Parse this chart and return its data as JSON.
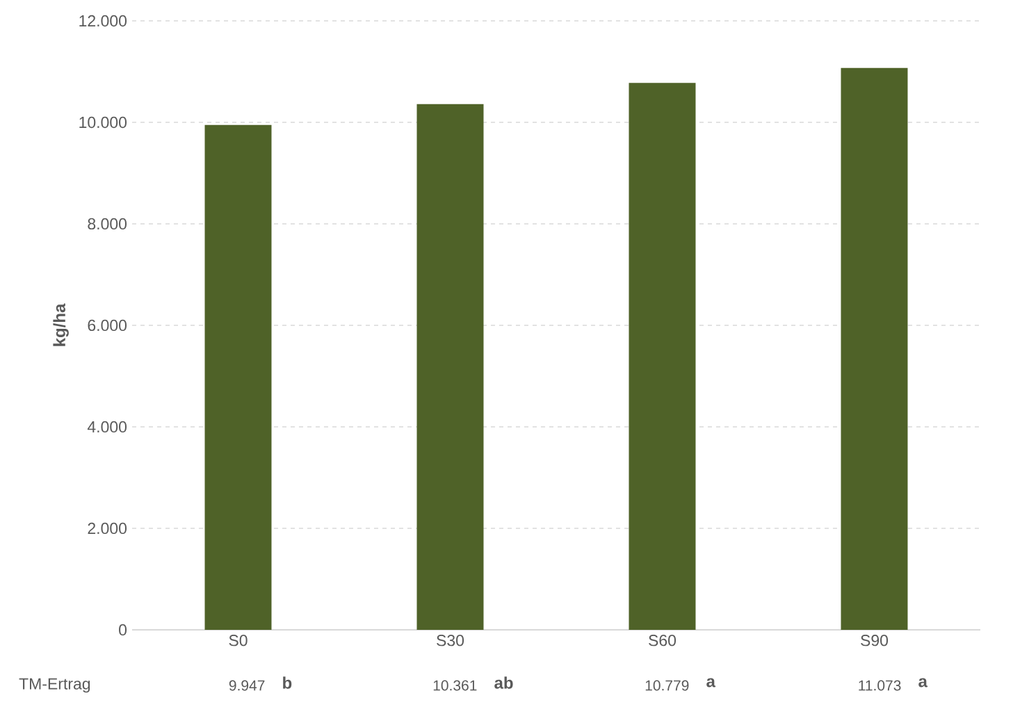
{
  "chart_data": {
    "type": "bar",
    "ylabel": "kg/ha",
    "categories": [
      "S0",
      "S30",
      "S60",
      "S90"
    ],
    "series": [
      {
        "name": "TM-Ertrag",
        "color": "#4f6228",
        "values": [
          9947,
          10361,
          10779,
          11073
        ],
        "value_labels": [
          "9.947",
          "10.361",
          "10.779",
          "11.073"
        ]
      }
    ],
    "annotations": [
      "b",
      "ab",
      "a",
      "a"
    ],
    "ylim": [
      0,
      12000
    ],
    "yticks": [
      {
        "value": 0,
        "label": "0"
      },
      {
        "value": 2000,
        "label": "2.000"
      },
      {
        "value": 4000,
        "label": "4.000"
      },
      {
        "value": 6000,
        "label": "6.000"
      },
      {
        "value": 8000,
        "label": "8.000"
      },
      {
        "value": 10000,
        "label": "10.000"
      },
      {
        "value": 12000,
        "label": "12.000"
      }
    ],
    "grid": "y"
  }
}
